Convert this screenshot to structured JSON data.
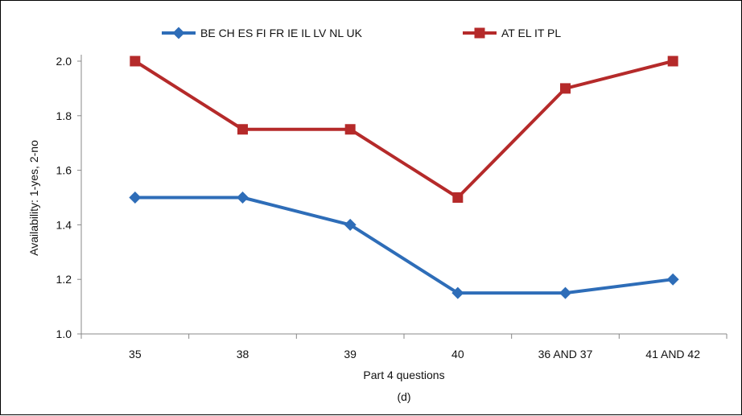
{
  "chart_data": {
    "type": "line",
    "categories": [
      "35",
      "38",
      "39",
      "40",
      "36 AND 37",
      "41 AND 42"
    ],
    "series": [
      {
        "name": "BE CH ES FI FR IE IL LV NL UK",
        "values": [
          1.5,
          1.5,
          1.4,
          1.15,
          1.15,
          1.2
        ],
        "color": "#2e6db8",
        "marker": "diamond"
      },
      {
        "name": "AT EL IT PL",
        "values": [
          2.0,
          1.75,
          1.75,
          1.5,
          1.9,
          2.0
        ],
        "color": "#b52a2a",
        "marker": "square"
      }
    ],
    "ylabel": "Availability: 1-yes, 2-no",
    "xlabel": "Part 4 questions",
    "caption": "(d)",
    "ylim": [
      1.0,
      2.0
    ],
    "yticks": [
      "1.0",
      "1.2",
      "1.4",
      "1.6",
      "1.8",
      "2.0"
    ],
    "grid": false,
    "legend_position": "top"
  }
}
